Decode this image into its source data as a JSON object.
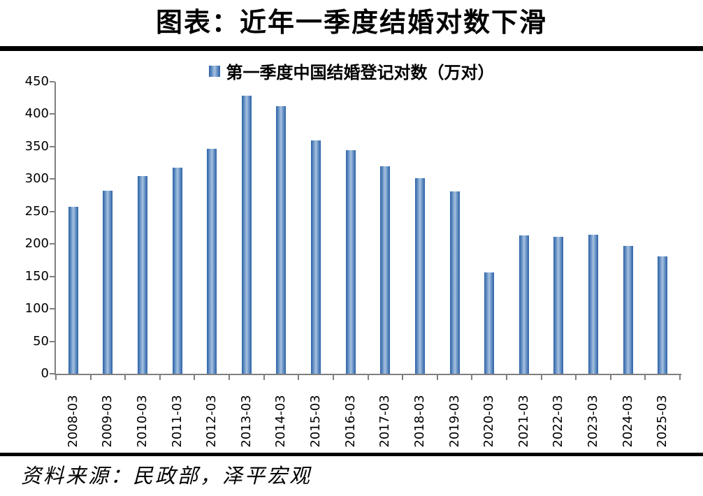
{
  "title": "图表：近年一季度结婚对数下滑",
  "legend": {
    "label": "第一季度中国结婚登记对数（万对）"
  },
  "source_note": "资料来源：民政部，泽平宏观",
  "colors": {
    "bar_edge": "#2f62a7",
    "bar_center": "#a9c2e0",
    "axis": "#808080",
    "rule": "#000000",
    "text": "#000000"
  },
  "chart_data": {
    "type": "bar",
    "title": "图表：近年一季度结婚对数下滑",
    "legend_entries": [
      "第一季度中国结婚登记对数（万对）"
    ],
    "legend_position": "top",
    "grid": false,
    "categories": [
      "2008-03",
      "2009-03",
      "2010-03",
      "2011-03",
      "2012-03",
      "2013-03",
      "2014-03",
      "2015-03",
      "2016-03",
      "2017-03",
      "2018-03",
      "2019-03",
      "2020-03",
      "2021-03",
      "2022-03",
      "2023-03",
      "2024-03",
      "2025-03"
    ],
    "values": [
      257.7,
      282.4,
      305.2,
      317.6,
      346.8,
      428.2,
      412.8,
      360.0,
      344.8,
      319.8,
      301.7,
      281.5,
      155.7,
      213.2,
      210.7,
      214.7,
      196.9,
      181.0
    ],
    "xlabel": "",
    "ylabel": "",
    "ylim": [
      0,
      450
    ],
    "ytick_step": 50,
    "yticks": [
      0,
      50,
      100,
      150,
      200,
      250,
      300,
      350,
      400,
      450
    ]
  }
}
